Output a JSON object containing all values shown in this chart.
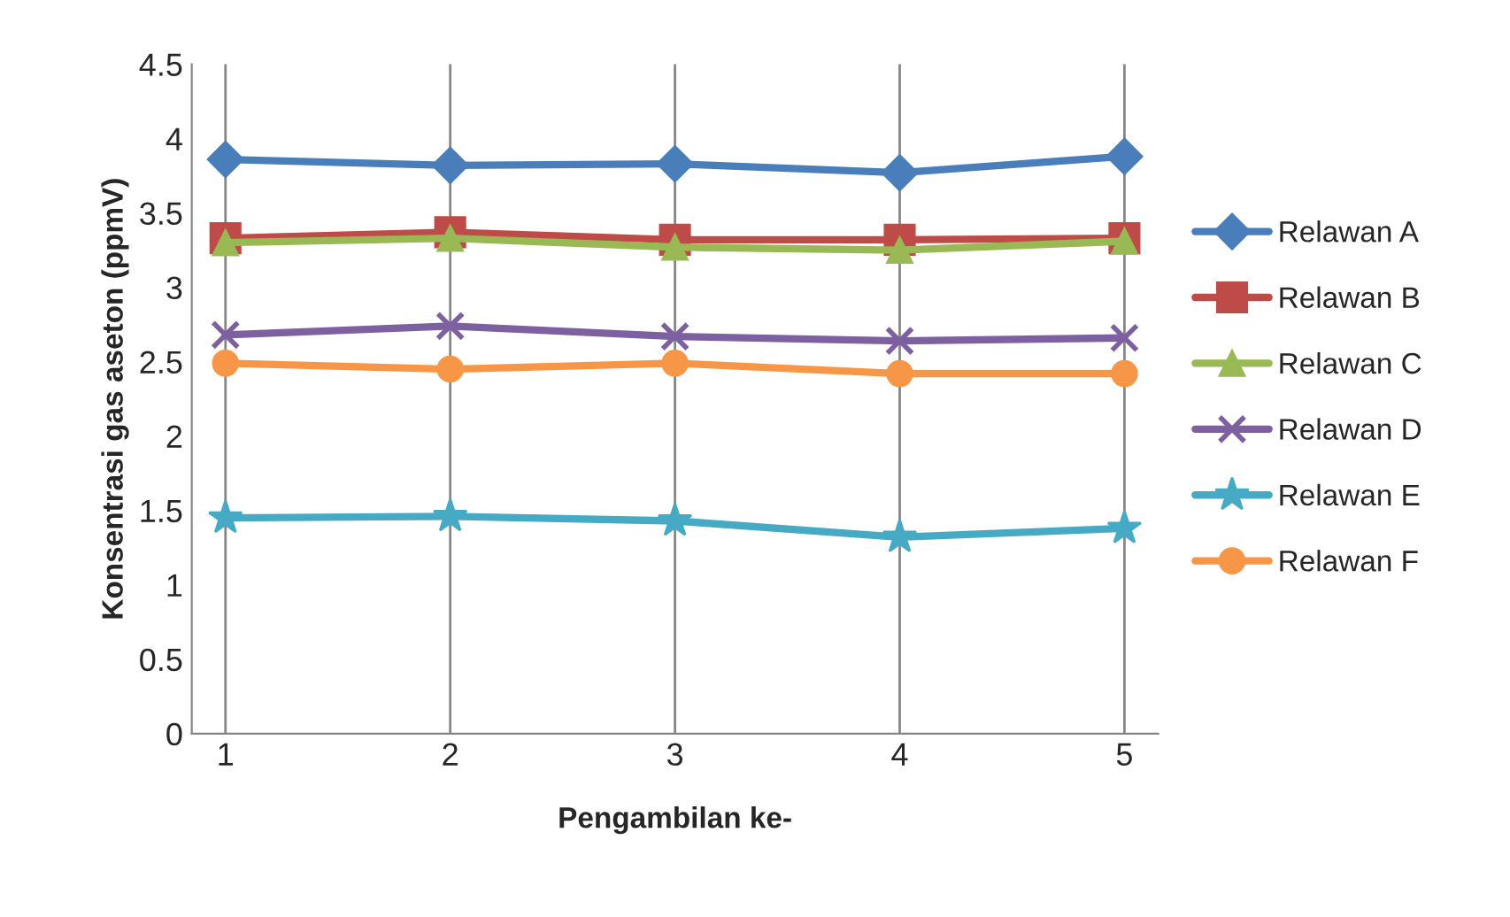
{
  "chart_data": {
    "type": "line",
    "xlabel": "Pengambilan ke-",
    "ylabel": "Konsentrasi gas aseton (ppmV)",
    "categories": [
      "1",
      "2",
      "3",
      "4",
      "5"
    ],
    "series": [
      {
        "name": "Relawan A",
        "color": "#4a7ebb",
        "marker": "diamond",
        "values": [
          3.86,
          3.82,
          3.83,
          3.77,
          3.88
        ]
      },
      {
        "name": "Relawan B",
        "color": "#be4b48",
        "marker": "square",
        "values": [
          3.33,
          3.37,
          3.32,
          3.32,
          3.33
        ]
      },
      {
        "name": "Relawan C",
        "color": "#98b954",
        "marker": "triangle",
        "values": [
          3.3,
          3.33,
          3.27,
          3.25,
          3.31
        ]
      },
      {
        "name": "Relawan D",
        "color": "#7d60a0",
        "marker": "cross",
        "values": [
          2.68,
          2.74,
          2.67,
          2.64,
          2.66
        ]
      },
      {
        "name": "Relawan E",
        "color": "#46aac5",
        "marker": "star",
        "values": [
          1.45,
          1.46,
          1.43,
          1.32,
          1.38
        ]
      },
      {
        "name": "Relawan F",
        "color": "#f79646",
        "marker": "circle",
        "values": [
          2.49,
          2.45,
          2.49,
          2.42,
          2.42
        ]
      }
    ],
    "ylim": [
      0,
      4.5
    ],
    "yticks": [
      0,
      0.5,
      1,
      1.5,
      2,
      2.5,
      3,
      3.5,
      4,
      4.5
    ],
    "grid": "x",
    "legend": "right",
    "line_style": "solid"
  }
}
